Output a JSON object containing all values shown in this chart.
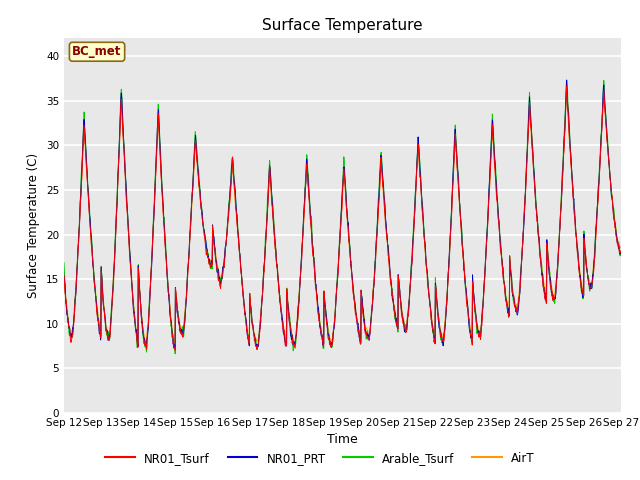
{
  "title": "Surface Temperature",
  "xlabel": "Time",
  "ylabel": "Surface Temperature (C)",
  "ylim": [
    0,
    42
  ],
  "yticks": [
    0,
    5,
    10,
    15,
    20,
    25,
    30,
    35,
    40
  ],
  "background_color": "#e8e8e8",
  "fig_background": "#ffffff",
  "grid_color": "#ffffff",
  "annotation_text": "BC_met",
  "annotation_color": "#8b0000",
  "annotation_bg": "#ffffcc",
  "annotation_border": "#8b6914",
  "series_colors": {
    "NR01_Tsurf": "#ff0000",
    "NR01_PRT": "#0000cd",
    "Arable_Tsurf": "#00cc00",
    "AirT": "#ff9900"
  },
  "legend_labels": [
    "NR01_Tsurf",
    "NR01_PRT",
    "Arable_Tsurf",
    "AirT"
  ],
  "x_tick_labels": [
    "Sep 12",
    "Sep 13",
    "Sep 14",
    "Sep 15",
    "Sep 16",
    "Sep 17",
    "Sep 18",
    "Sep 19",
    "Sep 20",
    "Sep 21",
    "Sep 22",
    "Sep 23",
    "Sep 24",
    "Sep 25",
    "Sep 26",
    "Sep 27"
  ],
  "n_days": 15,
  "points_per_day": 144,
  "day_peaks": [
    31.5,
    33.5,
    37.5,
    30.5,
    31.0,
    26.0,
    28.5,
    28.0,
    27.0,
    30.0,
    30.5,
    32.5,
    32.5,
    36.5,
    36.5,
    36.0
  ],
  "day_troughs": [
    8.5,
    8.5,
    7.5,
    7.0,
    16.5,
    7.5,
    7.5,
    7.5,
    8.0,
    9.5,
    8.0,
    8.0,
    11.0,
    12.5,
    13.0,
    18.0
  ],
  "peak_time": 0.54,
  "trough_time": 0.22,
  "linewidth": 0.7
}
